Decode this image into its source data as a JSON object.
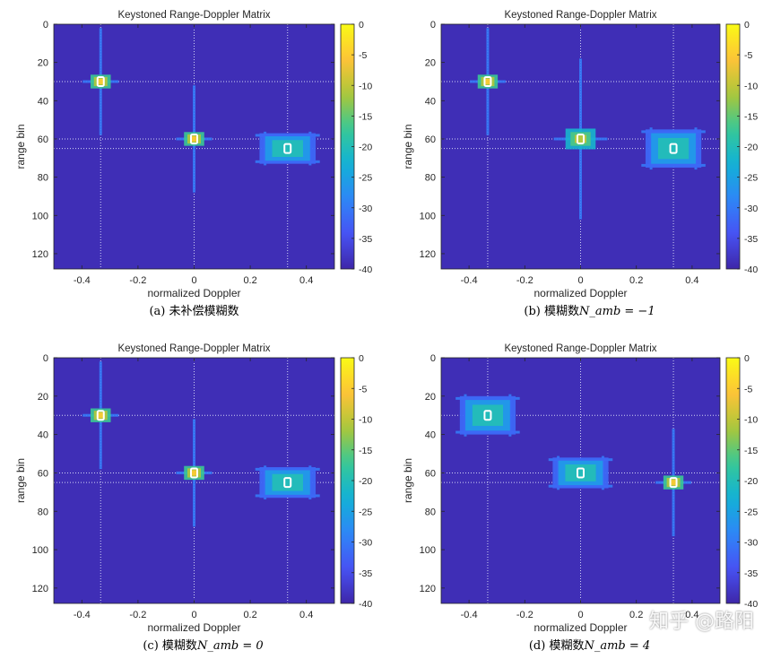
{
  "figure": {
    "watermark": "知乎 @路阳"
  },
  "chart_data": [
    {
      "type": "heatmap",
      "title": "Keystoned Range-Doppler Matrix",
      "xlabel": "normalized Doppler",
      "ylabel": "range bin",
      "xlim": [
        -0.5,
        0.5
      ],
      "ylim": [
        0,
        128
      ],
      "x_ticks": [
        "-0.4",
        "-0.2",
        "0",
        "0.2",
        "0.4"
      ],
      "y_ticks": [
        "0",
        "20",
        "40",
        "60",
        "80",
        "100",
        "120"
      ],
      "colorbar": {
        "range": [
          -40,
          0
        ],
        "ticks": [
          "0",
          "-5",
          "-10",
          "-15",
          "-20",
          "-25",
          "-30",
          "-35",
          "-40"
        ]
      },
      "caption_label": "(a)",
      "caption_text": "未补偿模糊数",
      "caption_math": "",
      "targets": [
        {
          "doppler": -0.333,
          "range": 30,
          "spread_doppler": 0.02,
          "spread_range": 2,
          "peak_db": -5
        },
        {
          "doppler": 0.0,
          "range": 60,
          "spread_doppler": 0.02,
          "spread_range": 2,
          "peak_db": -5
        },
        {
          "doppler": 0.333,
          "range": 65,
          "spread_doppler": 0.1,
          "spread_range": 8,
          "peak_db": -20
        }
      ]
    },
    {
      "type": "heatmap",
      "title": "Keystoned Range-Doppler Matrix",
      "xlabel": "normalized Doppler",
      "ylabel": "range bin",
      "xlim": [
        -0.5,
        0.5
      ],
      "ylim": [
        0,
        128
      ],
      "x_ticks": [
        "-0.4",
        "-0.2",
        "0",
        "0.2",
        "0.4"
      ],
      "y_ticks": [
        "0",
        "20",
        "40",
        "60",
        "80",
        "100",
        "120"
      ],
      "colorbar": {
        "range": [
          -40,
          0
        ],
        "ticks": [
          "0",
          "-5",
          "-10",
          "-15",
          "-20",
          "-25",
          "-30",
          "-35",
          "-40"
        ]
      },
      "caption_label": "(b)",
      "caption_text": "模糊数",
      "caption_math": "N_amb = −1",
      "targets": [
        {
          "doppler": -0.333,
          "range": 30,
          "spread_doppler": 0.02,
          "spread_range": 2,
          "peak_db": -5
        },
        {
          "doppler": 0.0,
          "range": 60,
          "spread_doppler": 0.03,
          "spread_range": 3,
          "peak_db": -10
        },
        {
          "doppler": 0.333,
          "range": 65,
          "spread_doppler": 0.1,
          "spread_range": 10,
          "peak_db": -20
        }
      ]
    },
    {
      "type": "heatmap",
      "title": "Keystoned Range-Doppler Matrix",
      "xlabel": "normalized Doppler",
      "ylabel": "range bin",
      "xlim": [
        -0.5,
        0.5
      ],
      "ylim": [
        0,
        128
      ],
      "x_ticks": [
        "-0.4",
        "-0.2",
        "0",
        "0.2",
        "0.4"
      ],
      "y_ticks": [
        "0",
        "20",
        "40",
        "60",
        "80",
        "100",
        "120"
      ],
      "colorbar": {
        "range": [
          -40,
          0
        ],
        "ticks": [
          "0",
          "-5",
          "-10",
          "-15",
          "-20",
          "-25",
          "-30",
          "-35",
          "-40"
        ]
      },
      "caption_label": "(c)",
      "caption_text": "模糊数",
      "caption_math": "N_amb = 0",
      "targets": [
        {
          "doppler": -0.333,
          "range": 30,
          "spread_doppler": 0.02,
          "spread_range": 2,
          "peak_db": -5
        },
        {
          "doppler": 0.0,
          "range": 60,
          "spread_doppler": 0.02,
          "spread_range": 2,
          "peak_db": -5
        },
        {
          "doppler": 0.333,
          "range": 65,
          "spread_doppler": 0.1,
          "spread_range": 8,
          "peak_db": -20
        }
      ]
    },
    {
      "type": "heatmap",
      "title": "Keystoned Range-Doppler Matrix",
      "xlabel": "normalized Doppler",
      "ylabel": "range bin",
      "xlim": [
        -0.5,
        0.5
      ],
      "ylim": [
        0,
        128
      ],
      "x_ticks": [
        "-0.4",
        "-0.2",
        "0",
        "0.2",
        "0.4"
      ],
      "y_ticks": [
        "0",
        "20",
        "40",
        "60",
        "80",
        "100",
        "120"
      ],
      "colorbar": {
        "range": [
          -40,
          0
        ],
        "ticks": [
          "0",
          "-5",
          "-10",
          "-15",
          "-20",
          "-25",
          "-30",
          "-35",
          "-40"
        ]
      },
      "caption_label": "(d)",
      "caption_text": "模糊数",
      "caption_math": "N_amb = 4",
      "targets": [
        {
          "doppler": -0.333,
          "range": 30,
          "spread_doppler": 0.1,
          "spread_range": 10,
          "peak_db": -20
        },
        {
          "doppler": 0.0,
          "range": 60,
          "spread_doppler": 0.1,
          "spread_range": 8,
          "peak_db": -20
        },
        {
          "doppler": 0.333,
          "range": 65,
          "spread_doppler": 0.02,
          "spread_range": 2,
          "peak_db": -5
        }
      ]
    }
  ]
}
